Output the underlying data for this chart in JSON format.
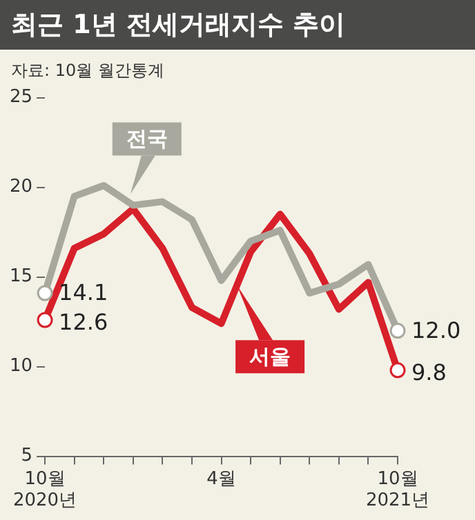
{
  "chart_data": {
    "type": "line",
    "title": "최근 1년 전세거래지수 추이",
    "subtitle": "자료: 10월 월간통계",
    "categories": [
      "10월\n2020년",
      null,
      null,
      null,
      null,
      null,
      "4월",
      null,
      null,
      null,
      null,
      null,
      "10월\n2021년"
    ],
    "series": [
      {
        "name": "전국",
        "color": "#a8a89e",
        "values": [
          14.1,
          19.5,
          20.1,
          19.0,
          19.2,
          18.2,
          14.8,
          17.0,
          17.6,
          14.1,
          14.6,
          15.7,
          12.0
        ],
        "value_labels": [
          "14.1",
          null,
          null,
          null,
          null,
          null,
          null,
          null,
          null,
          null,
          null,
          null,
          "12.0"
        ]
      },
      {
        "name": "서울",
        "color": "#d7202a",
        "values": [
          12.6,
          16.6,
          17.4,
          18.8,
          16.6,
          13.3,
          12.4,
          16.4,
          18.5,
          16.3,
          13.2,
          14.7,
          9.8
        ],
        "value_labels": [
          "12.6",
          null,
          null,
          null,
          null,
          null,
          null,
          null,
          null,
          null,
          null,
          null,
          "9.8"
        ]
      }
    ],
    "ylim": [
      5,
      25
    ],
    "yticks": [
      5,
      10,
      15,
      20,
      25
    ],
    "grid": false,
    "legend": false
  }
}
